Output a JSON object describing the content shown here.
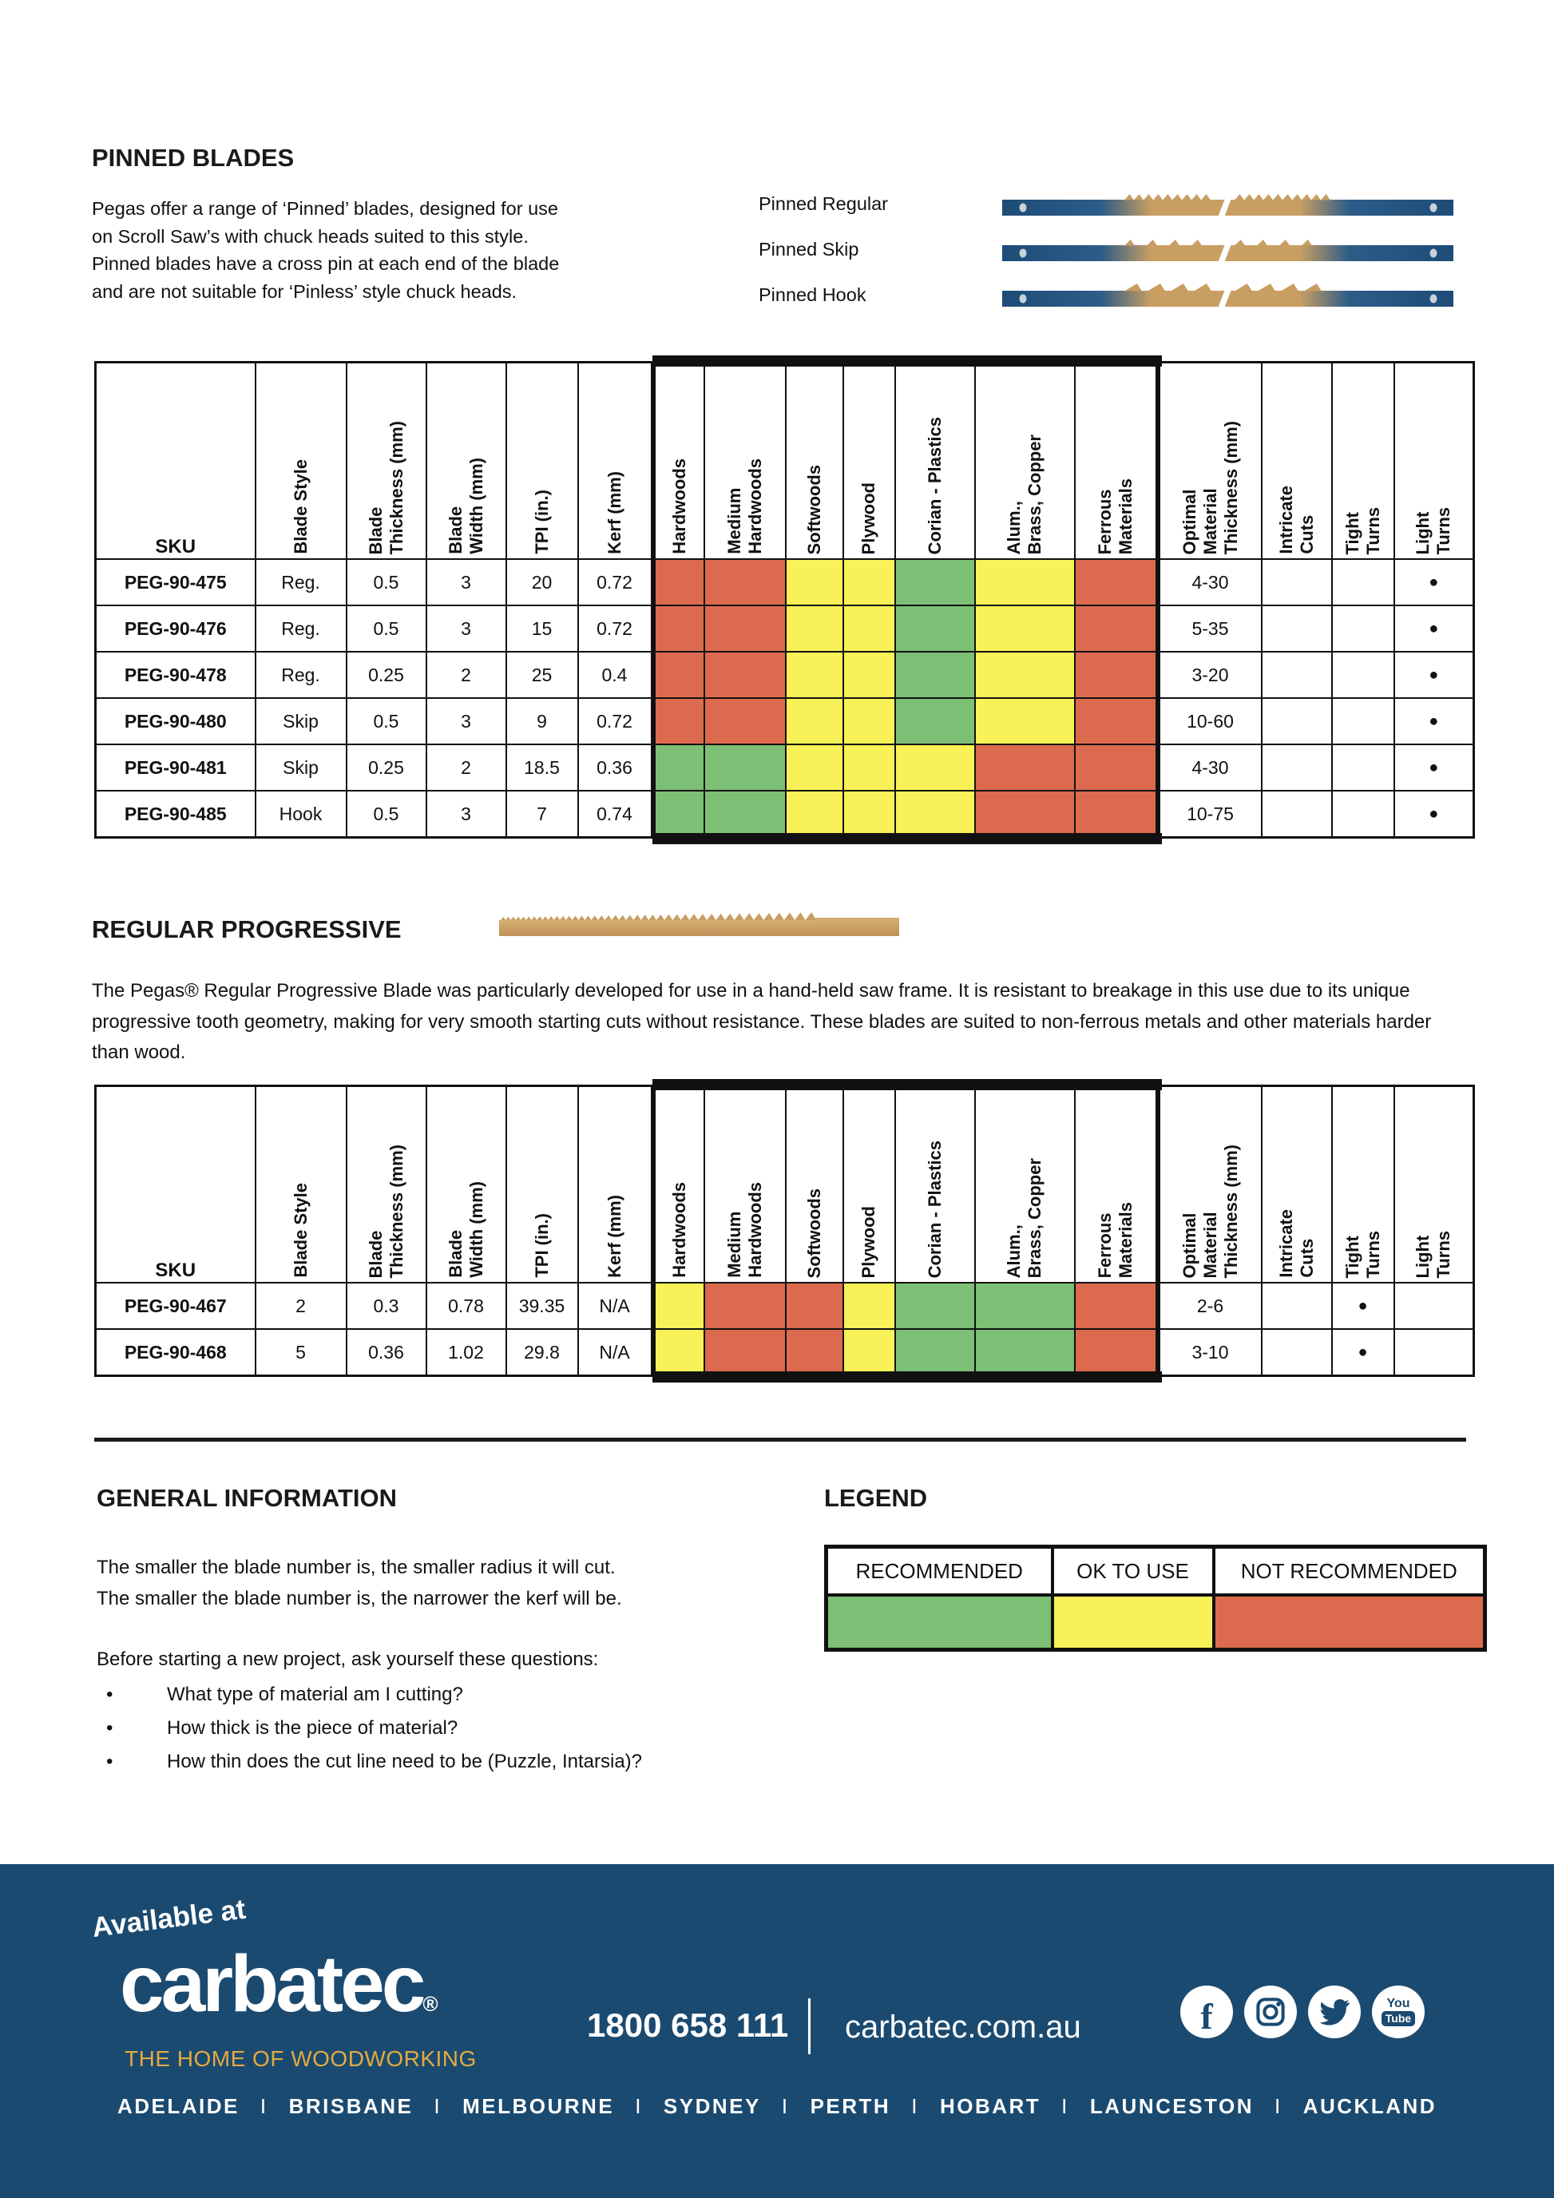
{
  "pinned": {
    "heading": "PINNED BLADES",
    "intro": "Pegas offer a range of ‘Pinned’ blades, designed for use\non Scroll Saw’s with chuck heads suited to this style.\nPinned blades have a cross pin at each end of the blade\nand are not suitable for ‘Pinless’ style chuck heads.",
    "blades": [
      {
        "label": "Pinned Regular",
        "style": "regular"
      },
      {
        "label": "Pinned Skip",
        "style": "skip"
      },
      {
        "label": "Pinned Hook",
        "style": "hook"
      }
    ]
  },
  "table_headers": {
    "sku": "SKU",
    "columns": [
      "Blade Style",
      "Blade\nThickness (mm)",
      "Blade\nWidth (mm)",
      "TPI (in.)",
      "Kerf (mm)",
      "Hardwoods",
      "Medium\nHardwoods",
      "Softwoods",
      "Plywood",
      "Corian  - Plastics",
      "Alum.,\nBrass, Copper",
      "Ferrous\nMaterials",
      "Optimal\nMaterial\nThickness (mm)",
      "Intricate\nCuts",
      "Tight\nTurns",
      "Light\nTurns"
    ]
  },
  "pinned_table": {
    "dot": "●",
    "rows": [
      {
        "sku": "PEG-90-475",
        "values": [
          "Reg.",
          "0.5",
          "3",
          "20",
          "0.72"
        ],
        "ratings": [
          "nr",
          "nr",
          "ok",
          "ok",
          "rec",
          "ok",
          "nr"
        ],
        "optimal": "4-30",
        "marks": [
          false,
          false,
          true
        ]
      },
      {
        "sku": "PEG-90-476",
        "values": [
          "Reg.",
          "0.5",
          "3",
          "15",
          "0.72"
        ],
        "ratings": [
          "nr",
          "nr",
          "ok",
          "ok",
          "rec",
          "ok",
          "nr"
        ],
        "optimal": "5-35",
        "marks": [
          false,
          false,
          true
        ]
      },
      {
        "sku": "PEG-90-478",
        "values": [
          "Reg.",
          "0.25",
          "2",
          "25",
          "0.4"
        ],
        "ratings": [
          "nr",
          "nr",
          "ok",
          "ok",
          "rec",
          "ok",
          "nr"
        ],
        "optimal": "3-20",
        "marks": [
          false,
          false,
          true
        ]
      },
      {
        "sku": "PEG-90-480",
        "values": [
          "Skip",
          "0.5",
          "3",
          "9",
          "0.72"
        ],
        "ratings": [
          "nr",
          "nr",
          "ok",
          "ok",
          "rec",
          "ok",
          "nr"
        ],
        "optimal": "10-60",
        "marks": [
          false,
          false,
          true
        ]
      },
      {
        "sku": "PEG-90-481",
        "values": [
          "Skip",
          "0.25",
          "2",
          "18.5",
          "0.36"
        ],
        "ratings": [
          "rec",
          "rec",
          "ok",
          "ok",
          "ok",
          "nr",
          "nr"
        ],
        "optimal": "4-30",
        "marks": [
          false,
          false,
          true
        ]
      },
      {
        "sku": "PEG-90-485",
        "values": [
          "Hook",
          "0.5",
          "3",
          "7",
          "0.74"
        ],
        "ratings": [
          "rec",
          "rec",
          "ok",
          "ok",
          "ok",
          "nr",
          "nr"
        ],
        "optimal": "10-75",
        "marks": [
          false,
          false,
          true
        ]
      }
    ]
  },
  "progressive": {
    "heading": "REGULAR PROGRESSIVE",
    "text": "The Pegas® Regular Progressive Blade was particularly developed for use in a hand-held saw frame. It is resistant to breakage in this use due to its unique progressive tooth geometry, making for very smooth starting cuts without resistance. These blades are suited to non-ferrous metals and other materials harder than wood."
  },
  "progressive_table": {
    "rows": [
      {
        "sku": "PEG-90-467",
        "values": [
          "2",
          "0.3",
          "0.78",
          "39.35",
          "N/A"
        ],
        "ratings": [
          "ok",
          "nr",
          "nr",
          "ok",
          "rec",
          "rec",
          "nr"
        ],
        "optimal": "2-6",
        "marks": [
          false,
          true,
          false
        ]
      },
      {
        "sku": "PEG-90-468",
        "values": [
          "5",
          "0.36",
          "1.02",
          "29.8",
          "N/A"
        ],
        "ratings": [
          "ok",
          "nr",
          "nr",
          "ok",
          "rec",
          "rec",
          "nr"
        ],
        "optimal": "3-10",
        "marks": [
          false,
          true,
          false
        ]
      }
    ]
  },
  "general": {
    "heading": "GENERAL INFORMATION",
    "lines": "The smaller the blade number is, the smaller radius it will cut.\nThe smaller the blade number is, the narrower the kerf will be.",
    "question_intro": "Before starting a new project, ask yourself these questions:",
    "bullets": [
      "What type of material am I cutting?",
      "How thick is the piece of material?",
      "How thin does the cut line need to be (Puzzle, Intarsia)?"
    ]
  },
  "legend": {
    "heading": "LEGEND",
    "items": [
      {
        "label": "RECOMMENDED",
        "key": "rec",
        "color": "#7dbf74"
      },
      {
        "label": "OK TO USE",
        "key": "ok",
        "color": "#f8f157"
      },
      {
        "label": "NOT RECOMMENDED",
        "key": "nr",
        "color": "#dc6a4e"
      }
    ]
  },
  "footer": {
    "available_at": "Available at",
    "brand": "carbatec",
    "registered": "®",
    "tagline": "THE HOME OF WOODWORKING",
    "phone": "1800 658 111",
    "website": "carbatec.com.au",
    "social": [
      {
        "name": "facebook",
        "glyph": "f"
      },
      {
        "name": "instagram"
      },
      {
        "name": "twitter"
      },
      {
        "name": "youtube",
        "lines": [
          "You",
          "Tube"
        ]
      }
    ],
    "cities": [
      "ADELAIDE",
      "BRISBANE",
      "MELBOURNE",
      "SYDNEY",
      "PERTH",
      "HOBART",
      "LAUNCESTON",
      "AUCKLAND"
    ],
    "city_separator": "I",
    "colors": {
      "background": "#1b4a70",
      "gold": "#e3aa41",
      "blade_tan": "#c89e62",
      "blade_navy": "#1d4c77"
    }
  }
}
